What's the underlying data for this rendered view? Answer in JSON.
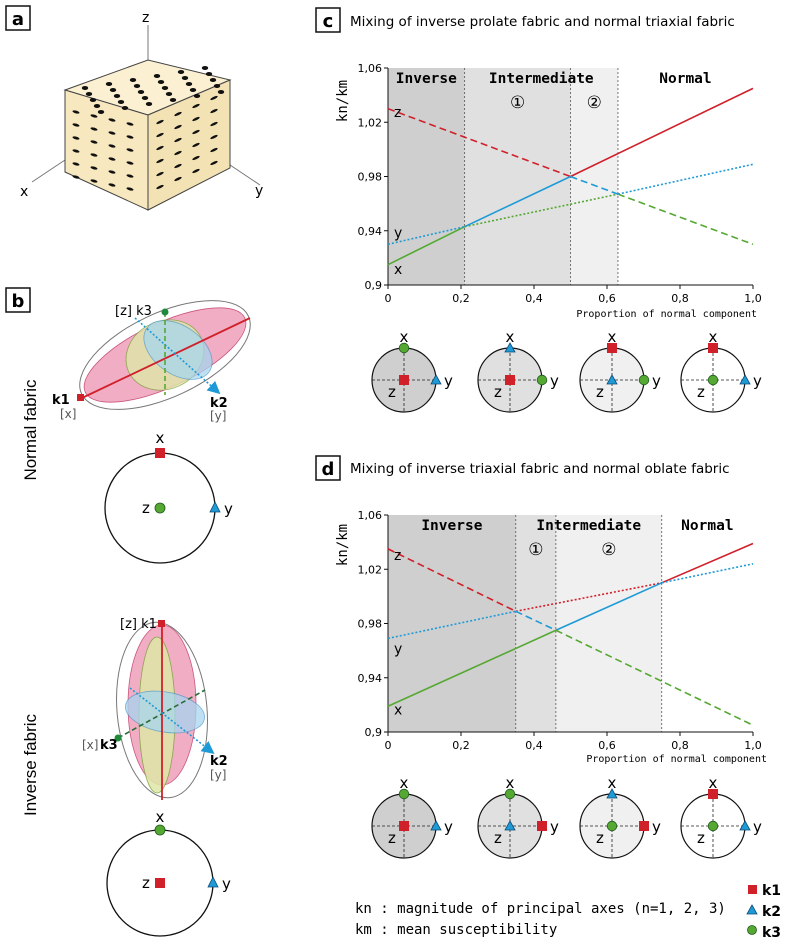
{
  "panel_a": {
    "label": "a",
    "axes": {
      "x": "x",
      "y": "y",
      "z": "z"
    }
  },
  "panel_b": {
    "label": "b",
    "normal_title": "Normal fabric",
    "inverse_title": "Inverse fabric",
    "normal_ellipsoid": {
      "k3": "[z] k3",
      "k1": "k1",
      "k1_axis": "[x]",
      "k2": "k2",
      "k2_axis": "[y]"
    },
    "normal_stereonet": {
      "top": "x",
      "center": "z",
      "right": "y"
    },
    "inverse_ellipsoid": {
      "k1": "[z] k1",
      "k3_axis": "[x]",
      "k3": "k3",
      "k2": "k2",
      "k2_axis": "[y]"
    },
    "inverse_stereonet": {
      "top": "x",
      "center": "z",
      "right": "y"
    }
  },
  "panel_c": {
    "label": "c",
    "title": "Mixing of inverse prolate fabric and normal triaxial fabric",
    "ylabel": "kn/km",
    "xlabel": "Proportion of normal component",
    "zones": {
      "inverse": "Inverse",
      "intermediate": "Intermediate",
      "normal": "Normal",
      "one": "①",
      "two": "②"
    },
    "series_labels": {
      "z": "z",
      "y": "y",
      "x": "x"
    },
    "yticks": [
      "0,9",
      "0,94",
      "0,98",
      "1,02",
      "1,06"
    ],
    "xticks": [
      "0",
      "0,2",
      "0,4",
      "0,6",
      "0,8",
      "1,0"
    ],
    "nets": [
      {
        "top": "x",
        "center": "z",
        "right": "y"
      },
      {
        "top": "x",
        "center": "z",
        "right": "y"
      },
      {
        "top": "x",
        "center": "z",
        "right": "y"
      },
      {
        "top": "x",
        "center": "z",
        "right": "y"
      }
    ]
  },
  "panel_d": {
    "label": "d",
    "title": "Mixing of inverse triaxial fabric and normal oblate fabric",
    "ylabel": "kn/km",
    "xlabel": "Proportion of normal component",
    "zones": {
      "inverse": "Inverse",
      "intermediate": "Intermediate",
      "normal": "Normal",
      "one": "①",
      "two": "②"
    },
    "series_labels": {
      "z": "z",
      "y": "y",
      "x": "x"
    },
    "yticks": [
      "0,9",
      "0,94",
      "0,98",
      "1,02",
      "1,06"
    ],
    "xticks": [
      "0",
      "0,2",
      "0,4",
      "0,6",
      "0,8",
      "1,0"
    ],
    "nets": [
      {
        "top": "x",
        "center": "z",
        "right": "y"
      },
      {
        "top": "x",
        "center": "z",
        "right": "y"
      },
      {
        "top": "x",
        "center": "z",
        "right": "y"
      },
      {
        "top": "x",
        "center": "z",
        "right": "y"
      }
    ]
  },
  "legend": {
    "kn_text": "kn : magnitude of principal axes (n=1, 2, 3)",
    "km_text": "km : mean susceptibility",
    "k1": "k1",
    "k2": "k2",
    "k3": "k3"
  },
  "colors": {
    "k1": "#d0202a",
    "k2": "#1e9ad6",
    "k3": "#55a832",
    "inverse_zone": "#cfcfcf",
    "intermediate1": "#e0e0e0",
    "intermediate2": "#f0f0f0"
  }
}
